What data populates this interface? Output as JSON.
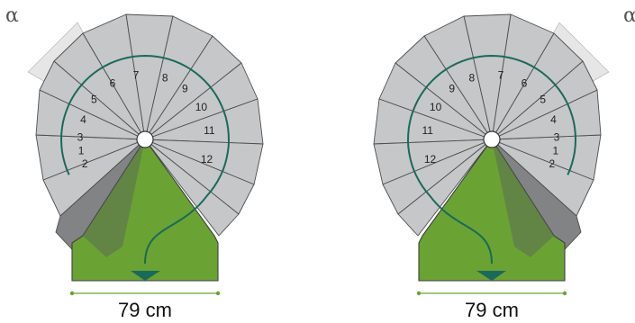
{
  "diagrams": [
    {
      "id": "left",
      "angle_label": "α",
      "width_label": "79 cm",
      "step_numbers": [
        "1",
        "2",
        "3",
        "4",
        "5",
        "6",
        "7",
        "8",
        "9",
        "10",
        "11",
        "12"
      ]
    },
    {
      "id": "right",
      "angle_label": "α",
      "width_label": "79 cm",
      "step_numbers": [
        "1",
        "2",
        "3",
        "4",
        "5",
        "6",
        "7",
        "8",
        "9",
        "10",
        "11",
        "12"
      ]
    }
  ],
  "colors": {
    "step_fill": "#c6c7c9",
    "step_shadow": "#828385",
    "landing_fill": "#6ba234",
    "walk_line": "#1a6a5a",
    "angle_sector": "#e6e6e6",
    "dimension_line": "#6ba234"
  }
}
